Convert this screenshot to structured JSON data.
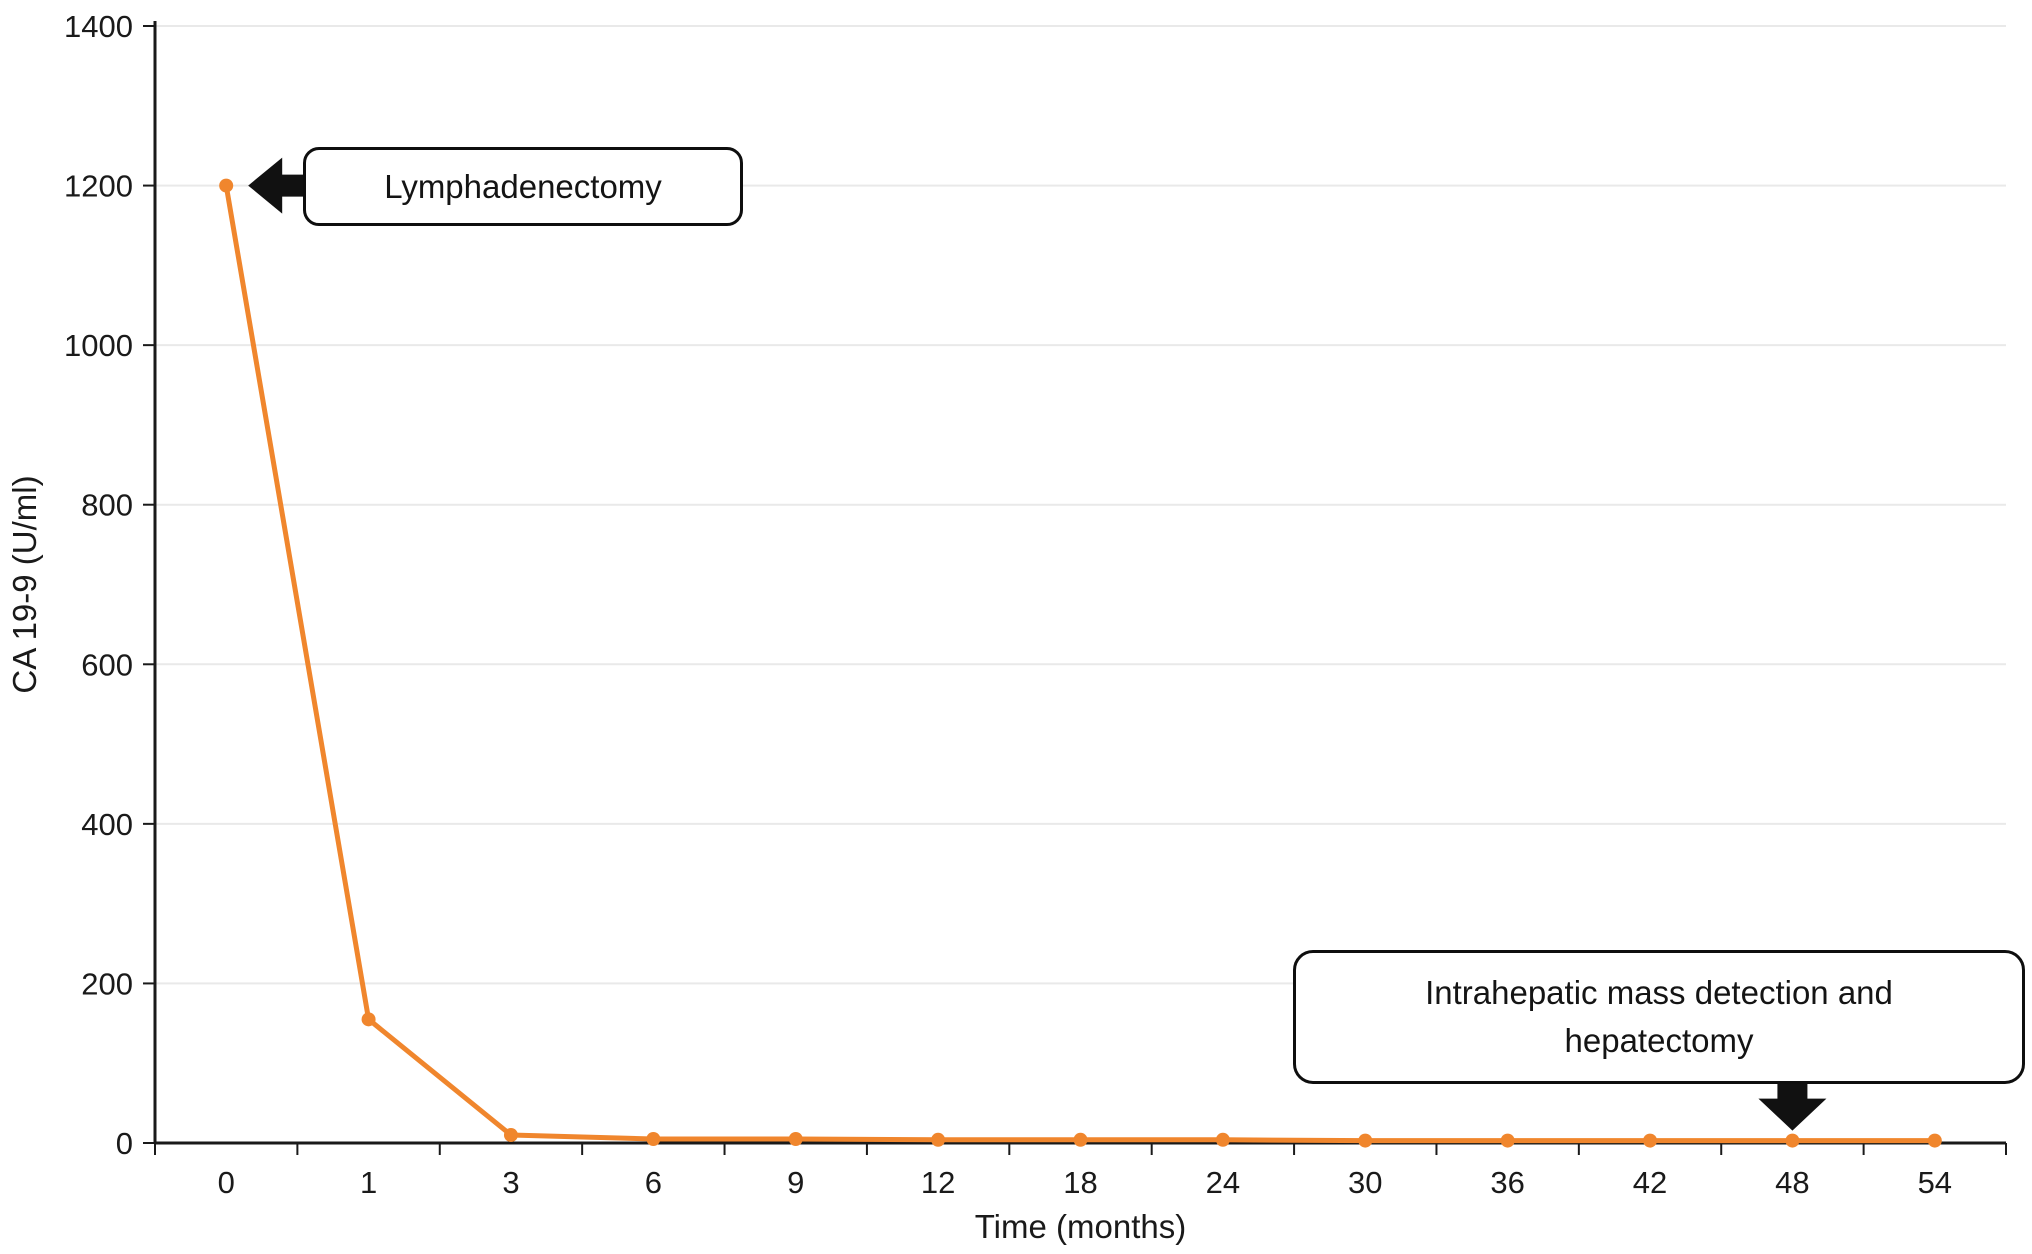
{
  "chart_data": {
    "type": "line",
    "title": "",
    "xlabel": "Time (months)",
    "ylabel": "CA 19-9 (U/ml)",
    "categories": [
      "0",
      "1",
      "3",
      "6",
      "9",
      "12",
      "18",
      "24",
      "30",
      "36",
      "42",
      "48",
      "54"
    ],
    "series": [
      {
        "name": "CA 19-9",
        "values": [
          1200,
          155,
          10,
          5,
          5,
          4,
          4,
          4,
          3,
          3,
          3,
          3,
          3
        ]
      }
    ],
    "ylim": [
      0,
      1400
    ],
    "yticks": [
      0,
      200,
      400,
      600,
      800,
      1000,
      1200,
      1400
    ],
    "grid": "horizontal",
    "legend": "none",
    "line_color": "#f0862d",
    "marker": "circle",
    "axis_color": "#1a1a1a",
    "grid_color": "#e9e9e9",
    "arrow_color": "#111111",
    "annotations": [
      {
        "text": "Lymphadenectomy",
        "target_category": "0",
        "target_index": 0,
        "target_value": 1200,
        "arrow": "left"
      },
      {
        "text": "Intrahepatic mass detection and hepatectomy",
        "lines": [
          "Intrahepatic mass detection and",
          "hepatectomy"
        ],
        "target_category": "48",
        "target_index": 11,
        "target_value": 3,
        "arrow": "down"
      }
    ]
  }
}
